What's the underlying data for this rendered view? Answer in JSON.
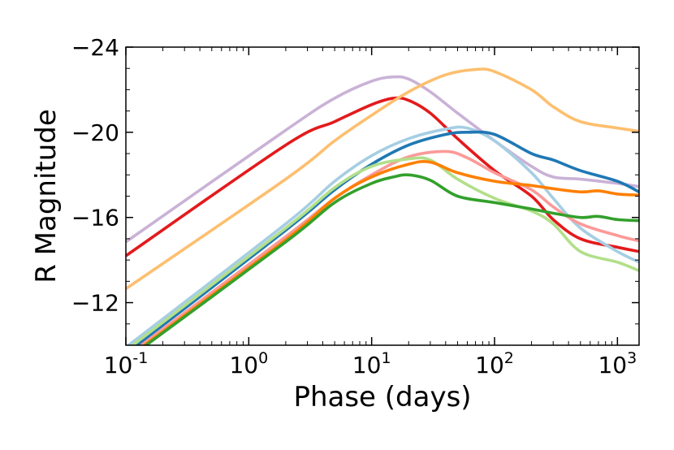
{
  "chart_data": {
    "type": "line",
    "title": "",
    "xlabel": "Phase (days)",
    "ylabel": "R Magnitude",
    "xscale": "log",
    "xlim": [
      0.1,
      1500
    ],
    "ylim": [
      -10,
      -24
    ],
    "y_inverted": true,
    "grid": false,
    "legend": "none",
    "x_ticks": [
      {
        "value": 0.1,
        "base": "10",
        "exp": "-1"
      },
      {
        "value": 1,
        "base": "10",
        "exp": "0"
      },
      {
        "value": 10,
        "base": "10",
        "exp": "1"
      },
      {
        "value": 100,
        "base": "10",
        "exp": "2"
      },
      {
        "value": 1000,
        "base": "10",
        "exp": "3"
      }
    ],
    "y_ticks": [
      {
        "value": -24,
        "label": "−24"
      },
      {
        "value": -20,
        "label": "−20"
      },
      {
        "value": -16,
        "label": "−16"
      },
      {
        "value": -12,
        "label": "−12"
      }
    ],
    "series": [
      {
        "name": "lilac",
        "color": "#cab2d6",
        "points": [
          [
            0.1,
            -14.85
          ],
          [
            2,
            -20.1
          ],
          [
            5,
            -21.6
          ],
          [
            10,
            -22.4
          ],
          [
            15,
            -22.6
          ],
          [
            20,
            -22.5
          ],
          [
            30,
            -21.9
          ],
          [
            50,
            -20.9
          ],
          [
            100,
            -19.6
          ],
          [
            200,
            -18.4
          ],
          [
            300,
            -17.9
          ],
          [
            500,
            -17.8
          ],
          [
            1000,
            -17.6
          ],
          [
            1500,
            -17.45
          ]
        ]
      },
      {
        "name": "red",
        "color": "#e31a1c",
        "points": [
          [
            0.1,
            -14.2
          ],
          [
            2,
            -19.4
          ],
          [
            5,
            -20.5
          ],
          [
            10,
            -21.3
          ],
          [
            15,
            -21.6
          ],
          [
            20,
            -21.5
          ],
          [
            30,
            -20.9
          ],
          [
            50,
            -19.7
          ],
          [
            100,
            -18.2
          ],
          [
            200,
            -17.0
          ],
          [
            300,
            -15.9
          ],
          [
            500,
            -15.0
          ],
          [
            1000,
            -14.6
          ],
          [
            1500,
            -14.4
          ]
        ]
      },
      {
        "name": "light-orange",
        "color": "#fdbf6f",
        "points": [
          [
            0.1,
            -12.65
          ],
          [
            2,
            -17.8
          ],
          [
            5,
            -19.6
          ],
          [
            10,
            -20.8
          ],
          [
            20,
            -21.9
          ],
          [
            40,
            -22.7
          ],
          [
            70,
            -22.95
          ],
          [
            100,
            -22.85
          ],
          [
            200,
            -22.0
          ],
          [
            300,
            -21.2
          ],
          [
            500,
            -20.5
          ],
          [
            1000,
            -20.2
          ],
          [
            1500,
            -20.05
          ]
        ]
      },
      {
        "name": "light-blue",
        "color": "#a6cee3",
        "points": [
          [
            0.1,
            -9.9
          ],
          [
            2,
            -15.7
          ],
          [
            5,
            -17.7
          ],
          [
            10,
            -18.9
          ],
          [
            20,
            -19.7
          ],
          [
            40,
            -20.15
          ],
          [
            60,
            -20.2
          ],
          [
            100,
            -19.6
          ],
          [
            200,
            -18.1
          ],
          [
            300,
            -16.9
          ],
          [
            500,
            -15.5
          ],
          [
            1000,
            -14.4
          ],
          [
            1500,
            -13.9
          ]
        ]
      },
      {
        "name": "blue",
        "color": "#1f78b4",
        "points": [
          [
            0.1,
            -9.6
          ],
          [
            2,
            -15.4
          ],
          [
            5,
            -17.3
          ],
          [
            10,
            -18.5
          ],
          [
            20,
            -19.4
          ],
          [
            40,
            -19.9
          ],
          [
            60,
            -20.0
          ],
          [
            100,
            -19.9
          ],
          [
            200,
            -19.0
          ],
          [
            300,
            -18.7
          ],
          [
            500,
            -18.2
          ],
          [
            1000,
            -17.7
          ],
          [
            1500,
            -17.2
          ]
        ]
      },
      {
        "name": "pink",
        "color": "#fb9a99",
        "points": [
          [
            0.1,
            -9.45
          ],
          [
            2,
            -15.1
          ],
          [
            5,
            -16.9
          ],
          [
            10,
            -18.0
          ],
          [
            20,
            -18.85
          ],
          [
            40,
            -19.1
          ],
          [
            60,
            -18.8
          ],
          [
            100,
            -18.1
          ],
          [
            200,
            -17.3
          ],
          [
            300,
            -16.5
          ],
          [
            500,
            -15.7
          ],
          [
            1000,
            -15.15
          ],
          [
            1500,
            -14.9
          ]
        ]
      },
      {
        "name": "light-green",
        "color": "#b2df8a",
        "points": [
          [
            0.1,
            -9.75
          ],
          [
            2,
            -15.5
          ],
          [
            5,
            -17.4
          ],
          [
            10,
            -18.4
          ],
          [
            20,
            -18.75
          ],
          [
            30,
            -18.7
          ],
          [
            50,
            -17.8
          ],
          [
            100,
            -16.9
          ],
          [
            200,
            -16.3
          ],
          [
            300,
            -15.7
          ],
          [
            500,
            -14.4
          ],
          [
            1000,
            -13.9
          ],
          [
            1500,
            -13.5
          ]
        ]
      },
      {
        "name": "orange",
        "color": "#ff7f00",
        "points": [
          [
            0.1,
            -9.35
          ],
          [
            2,
            -14.95
          ],
          [
            5,
            -16.9
          ],
          [
            10,
            -17.9
          ],
          [
            20,
            -18.5
          ],
          [
            30,
            -18.6
          ],
          [
            50,
            -18.1
          ],
          [
            100,
            -17.7
          ],
          [
            200,
            -17.5
          ],
          [
            300,
            -17.35
          ],
          [
            500,
            -17.2
          ],
          [
            700,
            -17.25
          ],
          [
            1000,
            -17.1
          ],
          [
            1500,
            -17.05
          ]
        ]
      },
      {
        "name": "green",
        "color": "#33a02c",
        "points": [
          [
            0.1,
            -9.3
          ],
          [
            2,
            -14.85
          ],
          [
            5,
            -16.7
          ],
          [
            10,
            -17.6
          ],
          [
            15,
            -17.9
          ],
          [
            20,
            -18.0
          ],
          [
            30,
            -17.75
          ],
          [
            50,
            -17.0
          ],
          [
            100,
            -16.7
          ],
          [
            200,
            -16.4
          ],
          [
            300,
            -16.2
          ],
          [
            500,
            -16.0
          ],
          [
            700,
            -16.05
          ],
          [
            1000,
            -15.9
          ],
          [
            1500,
            -15.85
          ]
        ]
      }
    ]
  }
}
